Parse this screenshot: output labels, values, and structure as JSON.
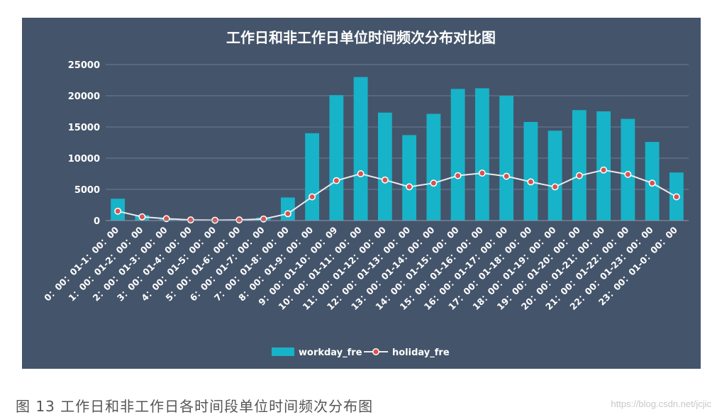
{
  "chart_data": {
    "type": "bar",
    "title": "工作日和非工作日单位时间频次分布对比图",
    "categories": [
      "0：00：01-1：00：00",
      "1：00：01-2：00：00",
      "2：00：01-3：00：00",
      "3：00：01-4：00：00",
      "4：00：01-5：00：00",
      "5：00：01-6：00：00",
      "6：00：01-7：00：00",
      "7：00：01-8：00：00",
      "8：00：01-9：00：00",
      "9：00：01-10：00：09",
      "10：00：01-11：00：00",
      "11：00：01-12：00：00",
      "12：00：01-13：00：00",
      "13：00：01-14：00：00",
      "14：00：01-15：00：00",
      "15：00：01-16：00：00",
      "16：00：01-17：00：00",
      "17：00：01-18：00：00",
      "18：00：01-19：00：00",
      "19：00：01-20：00：00",
      "20：00：01-21：00：00",
      "21：00：01-22：00：00",
      "22：00：01-23：00：00",
      "23：00：01-0：00：00"
    ],
    "series": [
      {
        "name": "workday_fre",
        "type": "bar",
        "color": "#17b3c8",
        "values": [
          3500,
          900,
          250,
          100,
          80,
          80,
          500,
          3700,
          14000,
          20100,
          23000,
          17300,
          13700,
          17100,
          21100,
          21200,
          20000,
          15800,
          14400,
          17700,
          17500,
          16300,
          12600,
          7700
        ]
      },
      {
        "name": "holiday_fre",
        "type": "line",
        "color": "#e9ebef",
        "marker_color": "#d9534f",
        "values": [
          1500,
          600,
          300,
          100,
          50,
          100,
          250,
          1100,
          3800,
          6400,
          7500,
          6500,
          5400,
          6000,
          7200,
          7600,
          7100,
          6200,
          5400,
          7200,
          8100,
          7400,
          6000,
          3800
        ]
      }
    ],
    "ylim": [
      0,
      25000
    ],
    "yticks": [
      0,
      5000,
      10000,
      15000,
      20000,
      25000
    ],
    "grid": true,
    "legend_position": "bottom"
  },
  "caption": "图 13 工作日和非工作日各时间段单位时间频次分布图",
  "watermark": "https://blog.csdn.net/jcjic"
}
